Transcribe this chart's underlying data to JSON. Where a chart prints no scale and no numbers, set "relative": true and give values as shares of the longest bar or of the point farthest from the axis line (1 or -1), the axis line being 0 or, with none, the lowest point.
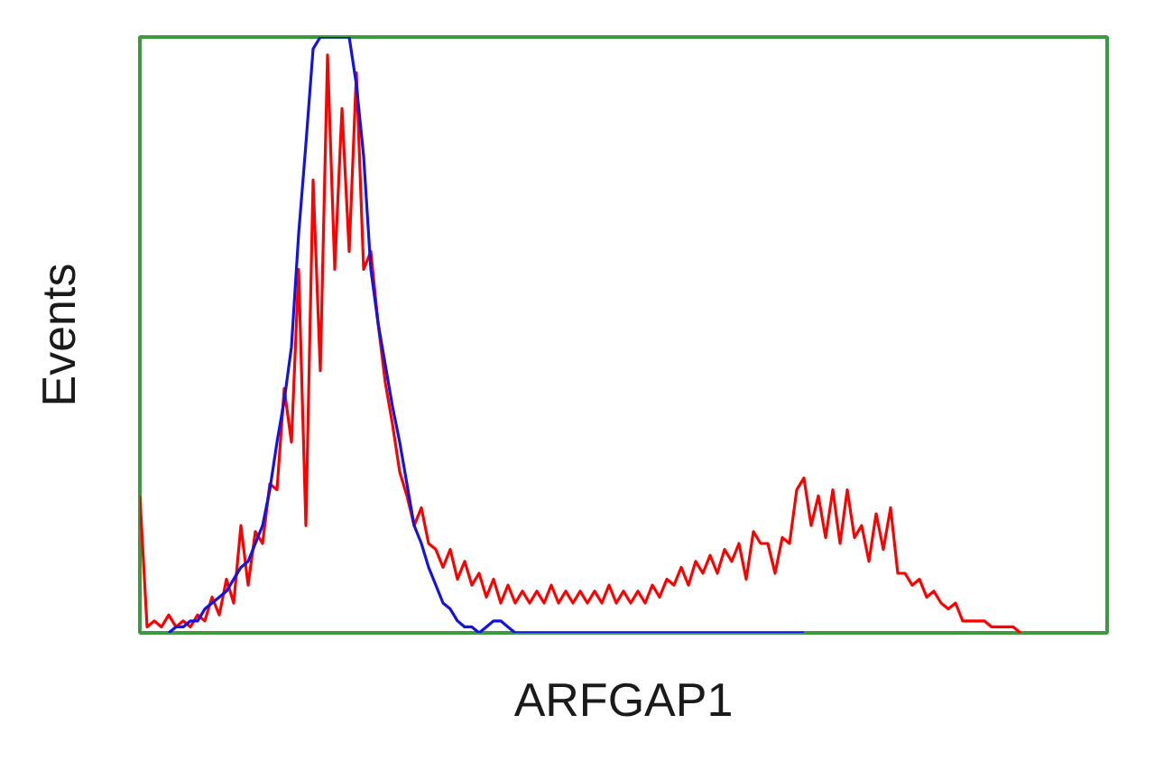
{
  "chart_data": {
    "type": "line",
    "xlabel": "ARFGAP1",
    "ylabel": "Events",
    "relative": true,
    "categories": [
      null,
      null,
      null,
      null,
      null,
      null,
      null,
      null,
      null,
      null,
      null,
      null,
      null,
      null,
      null,
      null,
      null,
      null,
      null,
      null,
      null,
      null,
      null,
      null,
      null,
      null,
      null,
      null,
      null,
      null,
      null,
      null,
      null,
      null,
      null,
      null,
      null,
      null,
      null,
      null,
      null,
      null,
      null,
      null,
      null,
      null,
      null,
      null,
      null,
      null,
      null,
      null,
      null,
      null,
      null,
      null,
      null,
      null,
      null,
      null,
      null,
      null,
      null,
      null,
      null,
      null,
      null,
      null,
      null,
      null,
      null,
      null,
      null,
      null,
      null,
      null,
      null,
      null,
      null,
      null,
      null,
      null,
      null,
      null,
      null,
      null,
      null,
      null,
      null,
      null,
      null,
      null,
      null,
      null,
      null,
      null,
      null,
      null,
      null,
      null,
      null,
      null,
      null,
      null,
      null,
      null,
      null,
      null,
      null,
      null,
      null,
      null,
      null,
      null,
      null,
      null,
      null,
      null,
      null,
      null,
      null,
      null,
      null,
      null,
      null,
      null,
      null,
      null,
      null,
      null,
      null,
      null,
      null,
      null,
      null
    ],
    "series": [
      {
        "color": "#ff0000",
        "values": [
          0.23,
          0.01,
          0.02,
          0.01,
          0.03,
          0.01,
          0.02,
          0.01,
          0.03,
          0.02,
          0.06,
          0.03,
          0.09,
          0.05,
          0.18,
          0.08,
          0.17,
          0.15,
          0.25,
          0.24,
          0.41,
          0.32,
          0.61,
          0.18,
          0.76,
          0.44,
          0.97,
          0.61,
          0.88,
          0.64,
          0.94,
          0.61,
          0.64,
          0.52,
          0.42,
          0.35,
          0.27,
          0.23,
          0.18,
          0.21,
          0.15,
          0.14,
          0.11,
          0.14,
          0.09,
          0.12,
          0.08,
          0.1,
          0.06,
          0.09,
          0.05,
          0.08,
          0.05,
          0.07,
          0.05,
          0.07,
          0.05,
          0.08,
          0.05,
          0.07,
          0.05,
          0.07,
          0.05,
          0.07,
          0.05,
          0.08,
          0.05,
          0.07,
          0.05,
          0.07,
          0.05,
          0.08,
          0.06,
          0.09,
          0.08,
          0.11,
          0.08,
          0.12,
          0.1,
          0.13,
          0.1,
          0.14,
          0.12,
          0.15,
          0.09,
          0.17,
          0.15,
          0.15,
          0.1,
          0.16,
          0.15,
          0.24,
          0.26,
          0.18,
          0.23,
          0.16,
          0.24,
          0.15,
          0.24,
          0.16,
          0.18,
          0.12,
          0.2,
          0.14,
          0.21,
          0.1,
          0.1,
          0.08,
          0.09,
          0.06,
          0.07,
          0.05,
          0.04,
          0.05,
          0.02,
          0.02,
          0.02,
          0.02,
          0.01,
          0.01,
          0.01,
          0.01,
          0,
          null,
          null,
          null,
          null,
          null,
          null,
          null,
          null,
          null,
          null,
          null,
          null
        ]
      },
      {
        "color": "#1414e0",
        "values": [
          null,
          null,
          null,
          null,
          0,
          0.01,
          0.01,
          0.02,
          0.02,
          0.04,
          0.05,
          0.06,
          0.07,
          0.09,
          0.11,
          0.12,
          0.15,
          0.18,
          0.24,
          0.32,
          0.39,
          0.48,
          0.67,
          0.82,
          0.98,
          1,
          1,
          1,
          1,
          1,
          0.92,
          0.8,
          0.61,
          0.52,
          0.45,
          0.38,
          0.32,
          0.25,
          0.18,
          0.15,
          0.11,
          0.08,
          0.05,
          0.04,
          0.02,
          0.01,
          0.01,
          0,
          0.01,
          0.02,
          0.02,
          0.01,
          0,
          0,
          0,
          0,
          0,
          0,
          0,
          0,
          0,
          0,
          0,
          0,
          0,
          0,
          0,
          0,
          0,
          0,
          0,
          0,
          0,
          0,
          0,
          0,
          0,
          0,
          0,
          0,
          0,
          0,
          0,
          0,
          0,
          0,
          0,
          0,
          0,
          0,
          0,
          0,
          0,
          null,
          null,
          null,
          null,
          null,
          null,
          null,
          null,
          null,
          null,
          null,
          null,
          null,
          null,
          null,
          null,
          null,
          null,
          null,
          null,
          null,
          null,
          null,
          null,
          null,
          null,
          null,
          null,
          null,
          null,
          null,
          null,
          null,
          null,
          null,
          null,
          null,
          null,
          null,
          null,
          null,
          null
        ]
      }
    ]
  }
}
